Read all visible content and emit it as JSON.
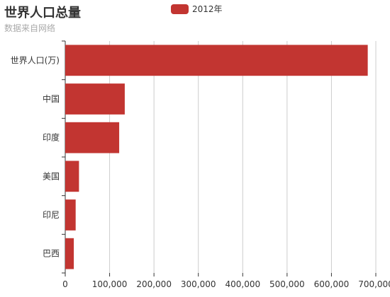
{
  "chart_data": {
    "type": "bar",
    "orientation": "horizontal",
    "title": "世界人口总量",
    "subtitle": "数据来自网络",
    "categories": [
      "世界人口(万)",
      "中国",
      "印度",
      "美国",
      "印尼",
      "巴西"
    ],
    "series": [
      {
        "name": "2012年",
        "color": "#c23531",
        "values": [
          681807,
          134141,
          121594,
          31000,
          23489,
          19325
        ]
      }
    ],
    "xlim": [
      0,
      700000
    ],
    "x_ticks": [
      "0",
      "100,000",
      "200,000",
      "300,000",
      "400,000",
      "500,000",
      "600,000",
      "700,000"
    ],
    "grid": true,
    "legend_position": "top-center"
  }
}
